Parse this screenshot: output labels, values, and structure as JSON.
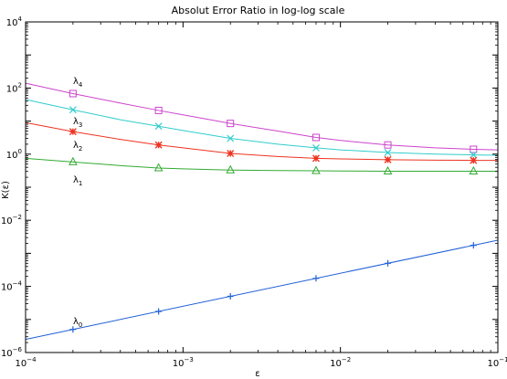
{
  "chart_data": {
    "type": "line",
    "title": "Absolut Error Ratio in log-log scale",
    "xlabel": "ε",
    "ylabel": "K(ε)",
    "xscale": "log",
    "yscale": "log",
    "xlim": [
      0.0001,
      0.1
    ],
    "ylim": [
      1e-06,
      10000
    ],
    "grid": false,
    "x_ticks": [
      {
        "value": 0.0001,
        "base": "10",
        "exp": "−4"
      },
      {
        "value": 0.001,
        "base": "10",
        "exp": "−3"
      },
      {
        "value": 0.01,
        "base": "10",
        "exp": "−2"
      },
      {
        "value": 0.1,
        "base": "10",
        "exp": "−1"
      }
    ],
    "y_ticks": [
      {
        "value": 1e-06,
        "base": "10",
        "exp": "−6"
      },
      {
        "value": 0.0001,
        "base": "10",
        "exp": "−4"
      },
      {
        "value": 0.01,
        "base": "10",
        "exp": "−2"
      },
      {
        "value": 1,
        "base": "10",
        "exp": "0"
      },
      {
        "value": 100,
        "base": "10",
        "exp": "2"
      },
      {
        "value": 10000,
        "base": "10",
        "exp": "4"
      }
    ],
    "marker_x": [
      0.0002,
      0.0007,
      0.002,
      0.007,
      0.02,
      0.07
    ],
    "series": [
      {
        "label_main": "λ",
        "label_sub": "4",
        "color": "#cc44cc",
        "marker": "square",
        "curve_x": [
          0.0001,
          0.0002,
          0.0004,
          0.0007,
          0.001,
          0.002,
          0.004,
          0.007,
          0.01,
          0.02,
          0.04,
          0.07,
          0.1
        ],
        "curve_y": [
          140,
          68,
          35,
          21,
          15.5,
          8.5,
          5.0,
          3.2,
          2.6,
          1.9,
          1.55,
          1.4,
          1.35
        ],
        "marker_y": [
          68,
          21,
          8.5,
          3.2,
          1.9,
          1.4
        ]
      },
      {
        "label_main": "λ",
        "label_sub": "3",
        "color": "#33cccc",
        "marker": "x",
        "curve_x": [
          0.0001,
          0.0002,
          0.0004,
          0.0007,
          0.001,
          0.002,
          0.004,
          0.007,
          0.01,
          0.02,
          0.04,
          0.07,
          0.1
        ],
        "curve_y": [
          45,
          22,
          11,
          7,
          5.2,
          3.0,
          2.0,
          1.55,
          1.35,
          1.12,
          1.0,
          0.95,
          0.93
        ],
        "marker_y": [
          22,
          7,
          3.0,
          1.55,
          1.12,
          0.95
        ]
      },
      {
        "label_main": "λ",
        "label_sub": "2",
        "color": "#ee3322",
        "marker": "star",
        "curve_x": [
          0.0001,
          0.0002,
          0.0004,
          0.0007,
          0.001,
          0.002,
          0.004,
          0.007,
          0.01,
          0.02,
          0.04,
          0.07,
          0.1
        ],
        "curve_y": [
          9,
          4.8,
          2.8,
          1.9,
          1.55,
          1.05,
          0.85,
          0.75,
          0.72,
          0.68,
          0.66,
          0.65,
          0.65
        ],
        "marker_y": [
          4.8,
          1.9,
          1.05,
          0.75,
          0.68,
          0.65
        ]
      },
      {
        "label_main": "λ",
        "label_sub": "1",
        "color": "#33aa33",
        "marker": "triangle",
        "curve_x": [
          0.0001,
          0.0002,
          0.0004,
          0.0007,
          0.001,
          0.002,
          0.004,
          0.007,
          0.01,
          0.02,
          0.04,
          0.07,
          0.1
        ],
        "curve_y": [
          0.75,
          0.58,
          0.45,
          0.38,
          0.36,
          0.33,
          0.32,
          0.315,
          0.31,
          0.305,
          0.305,
          0.305,
          0.305
        ],
        "marker_y": [
          0.58,
          0.38,
          0.33,
          0.315,
          0.305,
          0.305
        ]
      },
      {
        "label_main": "λ",
        "label_sub": "0",
        "color": "#1f5fd6",
        "marker": "plus",
        "curve_x": [
          0.0001,
          0.1
        ],
        "curve_y": [
          2.5e-06,
          0.0025
        ],
        "marker_y": [
          5e-06,
          1.75e-05,
          5e-05,
          0.000175,
          0.0005,
          0.00175
        ]
      }
    ]
  }
}
